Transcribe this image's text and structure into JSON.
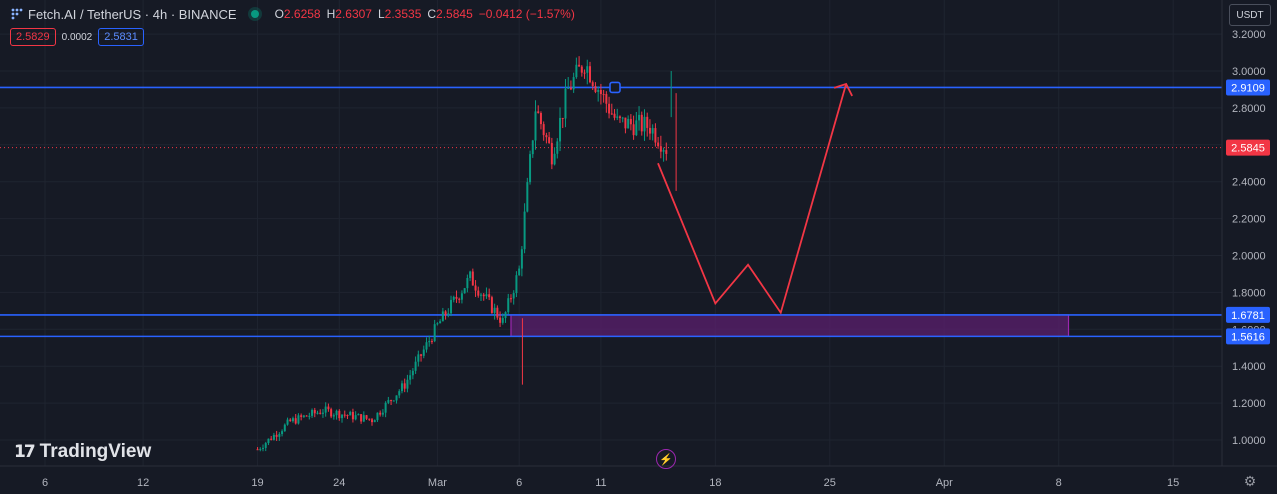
{
  "header": {
    "title": "Fetch.AI / TetherUS · 4h · BINANCE",
    "ohlc": [
      {
        "k": "O",
        "v": "2.6258"
      },
      {
        "k": "H",
        "v": "2.6307"
      },
      {
        "k": "L",
        "v": "2.3535"
      },
      {
        "k": "C",
        "v": "2.5845"
      }
    ],
    "change": "−0.0412 (−1.57%)",
    "bid": "2.5829",
    "spread": "0.0002",
    "ask": "2.5831",
    "currency": "USDT"
  },
  "icons": {
    "symbol": "fetch-ai-logo-icon",
    "status": "market-open-dot-icon",
    "settings": "gear-icon",
    "flash": "lightning-icon"
  },
  "brand": {
    "name": "TradingView"
  },
  "colors": {
    "background": "#161a25",
    "up": "#089981",
    "down": "#f23645",
    "level_line": "#2962ff",
    "zone_fill": "#5b1f6e",
    "zone_border": "#9c27b0",
    "projection": "#f23645"
  },
  "chart_data": {
    "type": "candlestick",
    "y_axis": {
      "ticks": [
        "3.2000",
        "3.0000",
        "2.8000",
        "2.6000",
        "2.4000",
        "2.2000",
        "2.0000",
        "1.8000",
        "1.6000",
        "1.4000",
        "1.2000",
        "1.0000"
      ],
      "tick_values": [
        3.2,
        3.0,
        2.8,
        2.6,
        2.4,
        2.2,
        2.0,
        1.8,
        1.6,
        1.4,
        1.2,
        1.0
      ]
    },
    "x_axis": {
      "ticks": [
        "6",
        "12",
        "19",
        "24",
        "Mar",
        "6",
        "11",
        "18",
        "25",
        "Apr",
        "8",
        "15"
      ]
    },
    "price_labels": [
      {
        "value": 2.9109,
        "text": "2.9109",
        "kind": "level"
      },
      {
        "value": 2.5845,
        "text": "2.5845",
        "kind": "last"
      },
      {
        "value": 1.6781,
        "text": "1.6781",
        "kind": "level"
      },
      {
        "value": 1.5616,
        "text": "1.5616",
        "kind": "level"
      }
    ],
    "horizontal_lines": [
      2.9109,
      1.6781,
      1.5616
    ],
    "current_price": 2.5845,
    "zone": {
      "top": 1.6781,
      "bottom": 1.5616
    },
    "series_keypoints": [
      {
        "x": "Feb 19",
        "price": 0.95
      },
      {
        "x": "Feb 21",
        "price": 1.1
      },
      {
        "x": "Feb 23",
        "price": 1.16
      },
      {
        "x": "Feb 26",
        "price": 1.11
      },
      {
        "x": "Feb 28",
        "price": 1.3
      },
      {
        "x": "Mar 1",
        "price": 1.62
      },
      {
        "x": "Mar 3",
        "price": 1.88
      },
      {
        "x": "Mar 5",
        "price": 1.64
      },
      {
        "x": "Mar 6",
        "price": 1.92
      },
      {
        "x": "Mar 7",
        "price": 2.8
      },
      {
        "x": "Mar 8",
        "price": 2.55
      },
      {
        "x": "Mar 9",
        "price": 2.9
      },
      {
        "x": "Mar 10",
        "price": 3.05
      },
      {
        "x": "Mar 11",
        "price": 2.88
      },
      {
        "x": "Mar 12",
        "price": 2.72
      },
      {
        "x": "Mar 14",
        "price": 2.7
      },
      {
        "x": "Mar 15",
        "price": 2.58
      }
    ],
    "projection_path": [
      {
        "x": "Mar 15",
        "price": 2.5
      },
      {
        "x": "Mar 18",
        "price": 1.74
      },
      {
        "x": "Mar 20",
        "price": 1.95
      },
      {
        "x": "Mar 22",
        "price": 1.69
      },
      {
        "x": "Mar 26",
        "price": 2.93
      }
    ]
  }
}
